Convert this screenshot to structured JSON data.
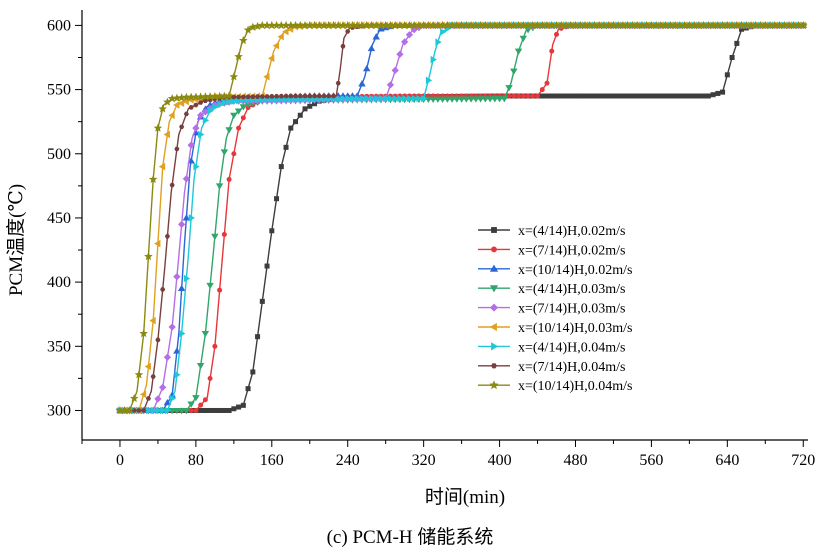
{
  "chart_data": {
    "type": "line",
    "title": "",
    "caption": "(c) PCM-H 储能系统",
    "xlabel": "时间(min)",
    "ylabel": "PCM温度(℃)",
    "xlim": [
      -40,
      725
    ],
    "ylim": [
      277,
      612
    ],
    "xticks": [
      0,
      80,
      160,
      240,
      320,
      400,
      480,
      560,
      640,
      720
    ],
    "yticks": [
      300,
      350,
      400,
      450,
      500,
      550,
      600
    ],
    "legend_position": "right-middle",
    "series": [
      {
        "name": "x=(4/14)H,0.02m/s",
        "color": "#3d3d3d",
        "marker": "square",
        "points": [
          [
            0,
            300
          ],
          [
            115,
            300
          ],
          [
            130,
            304
          ],
          [
            140,
            330
          ],
          [
            150,
            385
          ],
          [
            160,
            440
          ],
          [
            170,
            490
          ],
          [
            180,
            520
          ],
          [
            195,
            535
          ],
          [
            210,
            541
          ],
          [
            225,
            543
          ],
          [
            260,
            544
          ],
          [
            400,
            545
          ],
          [
            620,
            545
          ],
          [
            635,
            548
          ],
          [
            645,
            575
          ],
          [
            655,
            597
          ],
          [
            670,
            600
          ],
          [
            720,
            600
          ]
        ]
      },
      {
        "name": "x=(7/14)H,0.02m/s",
        "color": "#e8363a",
        "marker": "circle",
        "points": [
          [
            0,
            300
          ],
          [
            80,
            300
          ],
          [
            92,
            310
          ],
          [
            100,
            350
          ],
          [
            108,
            420
          ],
          [
            115,
            480
          ],
          [
            125,
            520
          ],
          [
            135,
            536
          ],
          [
            150,
            542
          ],
          [
            170,
            544
          ],
          [
            300,
            545
          ],
          [
            440,
            545
          ],
          [
            450,
            555
          ],
          [
            456,
            585
          ],
          [
            462,
            597
          ],
          [
            475,
            600
          ],
          [
            720,
            600
          ]
        ]
      },
      {
        "name": "x=(10/14)H,0.02m/s",
        "color": "#2a66d8",
        "marker": "triangle-up",
        "points": [
          [
            0,
            300
          ],
          [
            45,
            300
          ],
          [
            55,
            312
          ],
          [
            62,
            360
          ],
          [
            68,
            430
          ],
          [
            74,
            490
          ],
          [
            82,
            525
          ],
          [
            92,
            537
          ],
          [
            105,
            541
          ],
          [
            130,
            543
          ],
          [
            200,
            545
          ],
          [
            250,
            545
          ],
          [
            258,
            560
          ],
          [
            266,
            585
          ],
          [
            274,
            597
          ],
          [
            290,
            600
          ],
          [
            720,
            600
          ]
        ]
      },
      {
        "name": "x=(4/14)H,0.03m/s",
        "color": "#2fa66b",
        "marker": "triangle-down",
        "points": [
          [
            0,
            300
          ],
          [
            70,
            300
          ],
          [
            80,
            310
          ],
          [
            90,
            360
          ],
          [
            98,
            420
          ],
          [
            105,
            475
          ],
          [
            112,
            512
          ],
          [
            120,
            530
          ],
          [
            132,
            538
          ],
          [
            150,
            541
          ],
          [
            250,
            542
          ],
          [
            405,
            543
          ],
          [
            412,
            555
          ],
          [
            420,
            580
          ],
          [
            428,
            596
          ],
          [
            440,
            600
          ],
          [
            720,
            600
          ]
        ]
      },
      {
        "name": "x=(7/14)H,0.03m/s",
        "color": "#b56ee6",
        "marker": "diamond",
        "points": [
          [
            0,
            300
          ],
          [
            35,
            300
          ],
          [
            45,
            318
          ],
          [
            55,
            365
          ],
          [
            62,
            420
          ],
          [
            68,
            470
          ],
          [
            76,
            512
          ],
          [
            85,
            530
          ],
          [
            100,
            538
          ],
          [
            120,
            541
          ],
          [
            200,
            542
          ],
          [
            280,
            543
          ],
          [
            288,
            560
          ],
          [
            298,
            585
          ],
          [
            308,
            596
          ],
          [
            320,
            600
          ],
          [
            720,
            600
          ]
        ]
      },
      {
        "name": "x=(10/14)H,0.03m/s",
        "color": "#e0a020",
        "marker": "triangle-left",
        "points": [
          [
            0,
            300
          ],
          [
            20,
            300
          ],
          [
            28,
            320
          ],
          [
            35,
            370
          ],
          [
            40,
            430
          ],
          [
            45,
            490
          ],
          [
            52,
            525
          ],
          [
            60,
            538
          ],
          [
            75,
            542
          ],
          [
            100,
            544
          ],
          [
            150,
            545
          ],
          [
            155,
            560
          ],
          [
            162,
            580
          ],
          [
            172,
            594
          ],
          [
            185,
            599
          ],
          [
            200,
            600
          ],
          [
            720,
            600
          ]
        ]
      },
      {
        "name": "x=(4/14)H,0.04m/s",
        "color": "#1fc8d8",
        "marker": "triangle-right",
        "points": [
          [
            0,
            300
          ],
          [
            50,
            300
          ],
          [
            58,
            315
          ],
          [
            65,
            360
          ],
          [
            72,
            420
          ],
          [
            78,
            480
          ],
          [
            86,
            520
          ],
          [
            96,
            535
          ],
          [
            110,
            540
          ],
          [
            130,
            542
          ],
          [
            250,
            543
          ],
          [
            320,
            543
          ],
          [
            326,
            560
          ],
          [
            332,
            580
          ],
          [
            338,
            594
          ],
          [
            350,
            600
          ],
          [
            720,
            600
          ]
        ]
      },
      {
        "name": "x=(7/14)H,0.04m/s",
        "color": "#7a3e3e",
        "marker": "hexagon",
        "points": [
          [
            0,
            300
          ],
          [
            25,
            300
          ],
          [
            33,
            315
          ],
          [
            40,
            355
          ],
          [
            47,
            410
          ],
          [
            54,
            470
          ],
          [
            62,
            515
          ],
          [
            72,
            535
          ],
          [
            88,
            541
          ],
          [
            110,
            544
          ],
          [
            180,
            545
          ],
          [
            228,
            545
          ],
          [
            232,
            565
          ],
          [
            236,
            590
          ],
          [
            242,
            598
          ],
          [
            260,
            600
          ],
          [
            720,
            600
          ]
        ]
      },
      {
        "name": "x=(10/14)H,0.04m/s",
        "color": "#8a8a10",
        "marker": "star",
        "points": [
          [
            0,
            300
          ],
          [
            10,
            300
          ],
          [
            18,
            315
          ],
          [
            25,
            360
          ],
          [
            30,
            420
          ],
          [
            35,
            480
          ],
          [
            40,
            520
          ],
          [
            46,
            538
          ],
          [
            55,
            543
          ],
          [
            70,
            544
          ],
          [
            115,
            545
          ],
          [
            120,
            560
          ],
          [
            128,
            585
          ],
          [
            136,
            598
          ],
          [
            150,
            600
          ],
          [
            720,
            600
          ]
        ]
      }
    ]
  }
}
